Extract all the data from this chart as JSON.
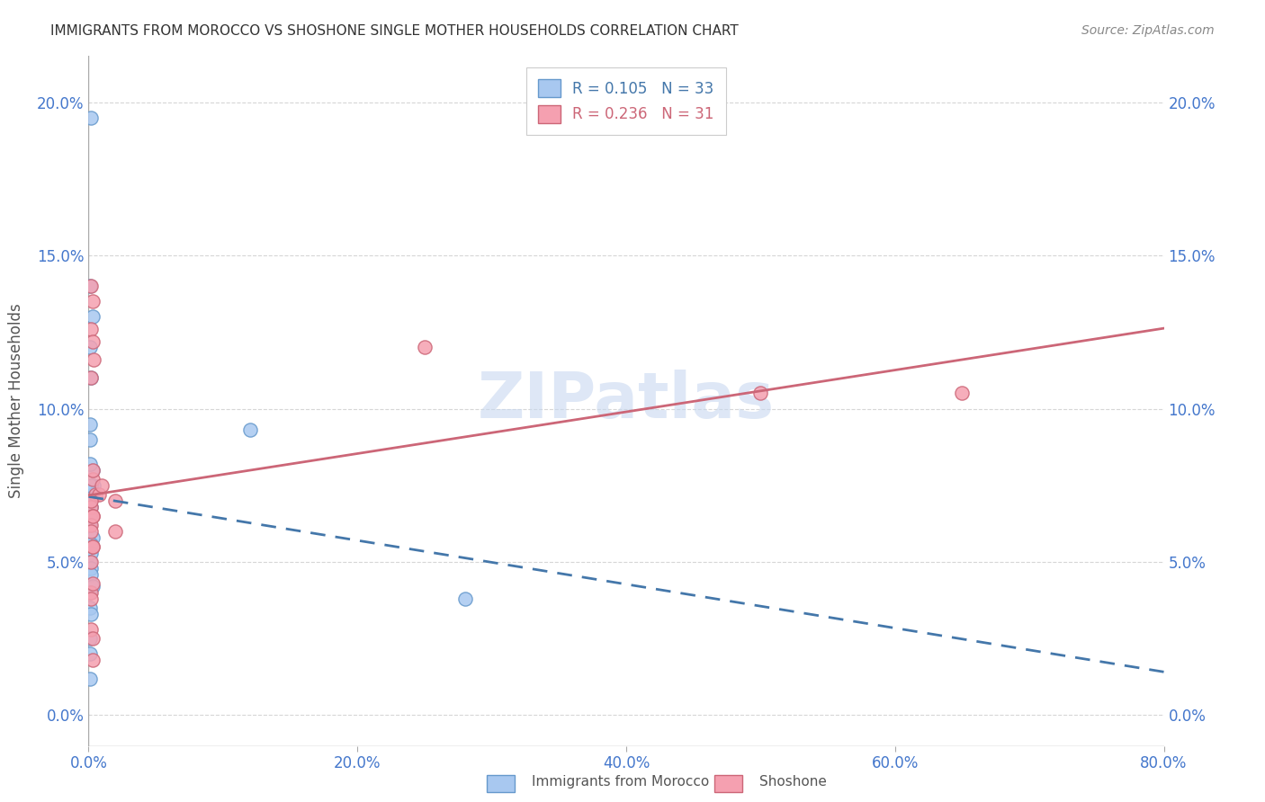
{
  "title": "IMMIGRANTS FROM MOROCCO VS SHOSHONE SINGLE MOTHER HOUSEHOLDS CORRELATION CHART",
  "source": "Source: ZipAtlas.com",
  "ylabel": "Single Mother Households",
  "xlim": [
    0,
    0.8
  ],
  "ylim": [
    -0.01,
    0.215
  ],
  "legend_r1": "0.105",
  "legend_n1": "33",
  "legend_r2": "0.236",
  "legend_n2": "31",
  "morocco_color": "#a8c8f0",
  "morocco_edge": "#6699cc",
  "shoshone_color": "#f5a0b0",
  "shoshone_edge": "#cc6677",
  "trendline1_color": "#4477aa",
  "trendline2_color": "#cc6677",
  "watermark": "ZIPatlas",
  "watermark_color": "#c8d8f0",
  "axis_color": "#4477cc",
  "morocco_points_x": [
    0.002,
    0.001,
    0.003,
    0.001,
    0.002,
    0.001,
    0.001,
    0.003,
    0.001,
    0.004,
    0.002,
    0.003,
    0.001,
    0.002,
    0.001,
    0.002,
    0.001,
    0.001,
    0.003,
    0.002,
    0.002,
    0.001,
    0.002,
    0.002,
    0.003,
    0.001,
    0.001,
    0.002,
    0.001,
    0.001,
    0.12,
    0.001,
    0.28
  ],
  "morocco_points_y": [
    0.195,
    0.14,
    0.13,
    0.12,
    0.11,
    0.095,
    0.09,
    0.08,
    0.082,
    0.075,
    0.073,
    0.072,
    0.07,
    0.075,
    0.07,
    0.068,
    0.065,
    0.062,
    0.058,
    0.056,
    0.053,
    0.05,
    0.048,
    0.046,
    0.042,
    0.04,
    0.035,
    0.033,
    0.025,
    0.02,
    0.093,
    0.012,
    0.038
  ],
  "shoshone_points_x": [
    0.002,
    0.003,
    0.002,
    0.003,
    0.004,
    0.002,
    0.003,
    0.005,
    0.008,
    0.002,
    0.003,
    0.002,
    0.003,
    0.002,
    0.003,
    0.01,
    0.02,
    0.002,
    0.003,
    0.002,
    0.003,
    0.002,
    0.02,
    0.003,
    0.002,
    0.002,
    0.003,
    0.25,
    0.003,
    0.5,
    0.65
  ],
  "shoshone_points_y": [
    0.14,
    0.135,
    0.126,
    0.122,
    0.116,
    0.11,
    0.077,
    0.072,
    0.072,
    0.068,
    0.065,
    0.062,
    0.08,
    0.07,
    0.055,
    0.075,
    0.07,
    0.04,
    0.065,
    0.06,
    0.055,
    0.05,
    0.06,
    0.043,
    0.038,
    0.028,
    0.025,
    0.12,
    0.018,
    0.105,
    0.105
  ]
}
